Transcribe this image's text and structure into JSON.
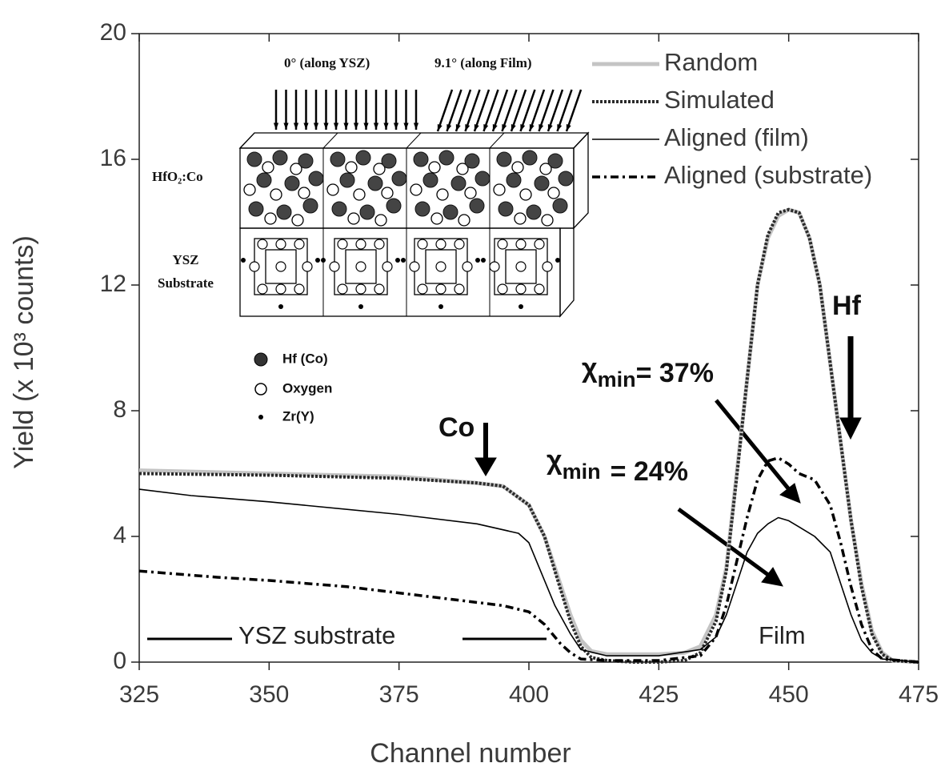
{
  "chart_data": {
    "type": "line",
    "x_label": "Channel number",
    "y_label": "Yield (x 10³ counts)",
    "xlim": [
      325,
      475
    ],
    "xticks": [
      325,
      350,
      375,
      400,
      425,
      450,
      475
    ],
    "ylim": [
      0,
      20
    ],
    "yticks": [
      0,
      4,
      8,
      12,
      16,
      20
    ],
    "legend": "upper right",
    "series": [
      {
        "name": "Random",
        "color": "#c4c4c4",
        "linestyle": "solid",
        "linewidth": 5,
        "x": [
          325,
          350,
          375,
          390,
          395,
          400,
          403,
          405,
          408,
          410,
          412,
          415,
          420,
          425,
          430,
          433,
          436,
          438,
          440,
          442,
          444,
          446,
          448,
          450,
          452,
          454,
          456,
          458,
          460,
          462,
          464,
          466,
          468,
          470,
          475
        ],
        "values": [
          6.1,
          6.0,
          5.9,
          5.7,
          5.6,
          5.0,
          4.0,
          3.0,
          1.5,
          0.7,
          0.35,
          0.25,
          0.25,
          0.25,
          0.3,
          0.5,
          1.5,
          3.0,
          6.0,
          9.0,
          12.0,
          13.5,
          14.2,
          14.4,
          14.3,
          13.5,
          12.0,
          9.5,
          7.0,
          4.5,
          2.5,
          1.0,
          0.3,
          0.05,
          0
        ]
      },
      {
        "name": "Simulated",
        "color": "#2a2a2a",
        "linestyle": "dotted",
        "linewidth": 4,
        "x": [
          325,
          350,
          375,
          390,
          395,
          400,
          403,
          405,
          408,
          410,
          412,
          415,
          420,
          425,
          430,
          433,
          436,
          438,
          440,
          442,
          444,
          446,
          448,
          450,
          452,
          454,
          456,
          458,
          460,
          462,
          464,
          466,
          468,
          470,
          475
        ],
        "values": [
          6.0,
          5.95,
          5.85,
          5.7,
          5.6,
          5.0,
          4.0,
          2.9,
          1.3,
          0.5,
          0.15,
          0.05,
          0.0,
          0.0,
          0.05,
          0.3,
          1.3,
          2.9,
          5.9,
          9.0,
          12.0,
          13.6,
          14.3,
          14.4,
          14.3,
          13.5,
          12.0,
          9.5,
          7.0,
          4.5,
          2.4,
          0.9,
          0.25,
          0.05,
          0
        ]
      },
      {
        "name": "Aligned (film)",
        "color": "#000000",
        "linestyle": "solid",
        "linewidth": 1.6,
        "x": [
          325,
          335,
          350,
          375,
          390,
          398,
          400,
          402,
          405,
          408,
          410,
          415,
          425,
          433,
          436,
          438,
          440,
          442,
          444,
          446,
          448,
          450,
          452,
          455,
          458,
          460,
          462,
          464,
          466,
          468,
          475
        ],
        "values": [
          5.5,
          5.3,
          5.1,
          4.7,
          4.4,
          4.1,
          3.8,
          3.0,
          1.8,
          0.9,
          0.4,
          0.2,
          0.2,
          0.4,
          0.8,
          1.5,
          2.5,
          3.5,
          4.1,
          4.4,
          4.6,
          4.5,
          4.3,
          4.0,
          3.5,
          2.5,
          1.5,
          0.7,
          0.3,
          0.1,
          0
        ]
      },
      {
        "name": "Aligned (substrate)",
        "color": "#000000",
        "linestyle": "dashdot",
        "linewidth": 3.5,
        "x": [
          325,
          340,
          350,
          365,
          375,
          385,
          395,
          400,
          403,
          406,
          408,
          410,
          415,
          425,
          433,
          436,
          438,
          440,
          442,
          444,
          446,
          448,
          450,
          452,
          455,
          458,
          460,
          462,
          464,
          466,
          468,
          475
        ],
        "values": [
          2.9,
          2.7,
          2.6,
          2.4,
          2.2,
          2.0,
          1.8,
          1.6,
          1.2,
          0.6,
          0.3,
          0.1,
          0.05,
          0.05,
          0.2,
          0.8,
          1.8,
          3.2,
          4.6,
          5.8,
          6.4,
          6.5,
          6.3,
          6.0,
          5.8,
          5.0,
          3.8,
          2.4,
          1.2,
          0.4,
          0.1,
          0
        ]
      }
    ],
    "annotations": {
      "co": "Co",
      "hf": "Hf",
      "chi37": {
        "symbol": "χ",
        "sub": "min",
        "text": "= 37%"
      },
      "chi24": {
        "symbol": "χ",
        "sub": "min",
        "text": "= 24%"
      },
      "ysz_substrate": "YSZ substrate",
      "film": "Film"
    },
    "inset": {
      "beam_ysz": "0° (along YSZ)",
      "beam_film": "9.1° (along Film)",
      "layer_film": "HfO₂:Co",
      "layer_substrate": [
        "YSZ",
        "Substrate"
      ],
      "legend": [
        "Hf (Co)",
        "Oxygen",
        "Zr(Y)"
      ]
    }
  }
}
